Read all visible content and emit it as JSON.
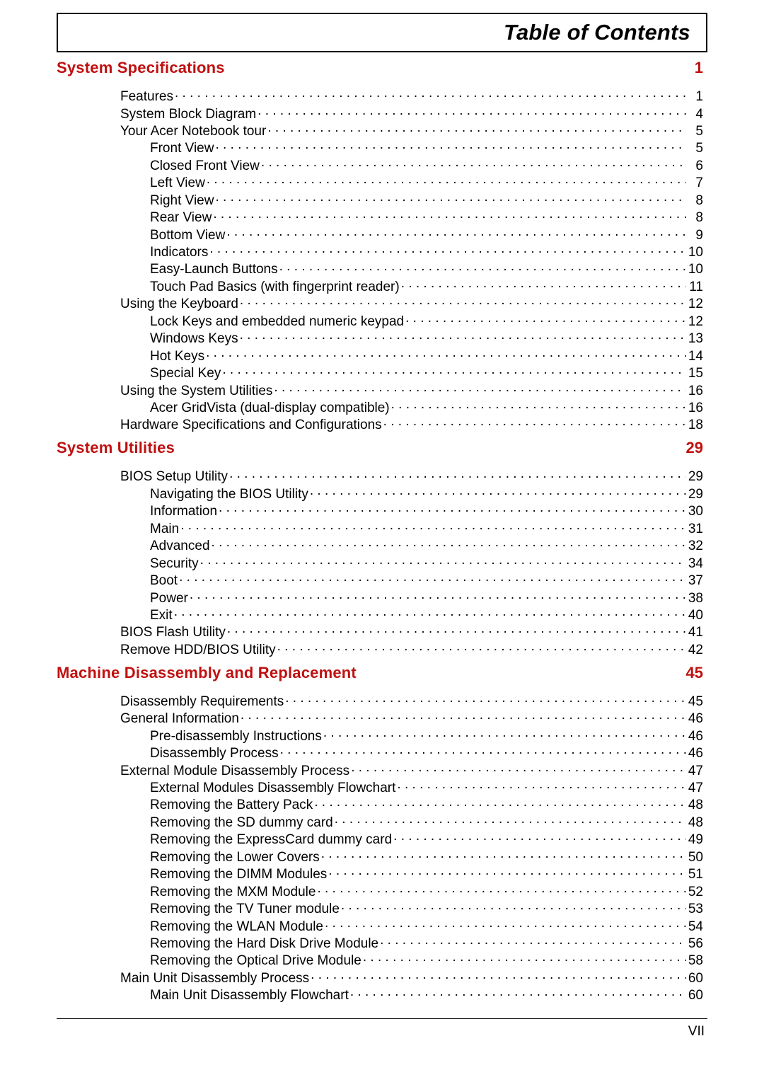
{
  "title": "Table of Contents",
  "footer_page": "VII",
  "colors": {
    "heading": "#c01010",
    "text": "#000000",
    "rule": "#000000",
    "background": "#ffffff"
  },
  "typography": {
    "body_fontsize_pt": 14,
    "heading_fontsize_pt": 17,
    "title_fontsize_pt": 24,
    "font_family": "Arial"
  },
  "sections": [
    {
      "title": "System Specifications",
      "page": "1",
      "entries": [
        {
          "level": 1,
          "label": "Features",
          "page": "1"
        },
        {
          "level": 1,
          "label": "System Block Diagram",
          "page": "4"
        },
        {
          "level": 1,
          "label": "Your Acer Notebook tour",
          "page": "5"
        },
        {
          "level": 2,
          "label": "Front View",
          "page": "5"
        },
        {
          "level": 2,
          "label": "Closed Front View",
          "page": "6"
        },
        {
          "level": 2,
          "label": "Left View",
          "page": "7"
        },
        {
          "level": 2,
          "label": "Right View",
          "page": "8"
        },
        {
          "level": 2,
          "label": "Rear View",
          "page": "8"
        },
        {
          "level": 2,
          "label": "Bottom View",
          "page": "9"
        },
        {
          "level": 2,
          "label": "Indicators",
          "page": "10"
        },
        {
          "level": 2,
          "label": "Easy-Launch Buttons",
          "page": "10"
        },
        {
          "level": 2,
          "label": "Touch Pad Basics (with fingerprint reader)",
          "page": "11"
        },
        {
          "level": 1,
          "label": "Using the Keyboard",
          "page": "12"
        },
        {
          "level": 2,
          "label": "Lock Keys and embedded numeric keypad",
          "page": "12"
        },
        {
          "level": 2,
          "label": "Windows Keys",
          "page": "13"
        },
        {
          "level": 2,
          "label": "Hot Keys",
          "page": "14"
        },
        {
          "level": 2,
          "label": "Special Key",
          "page": "15"
        },
        {
          "level": 1,
          "label": "Using the System Utilities",
          "page": "16"
        },
        {
          "level": 2,
          "label": "Acer GridVista (dual-display compatible)",
          "page": "16"
        },
        {
          "level": 1,
          "label": "Hardware Specifications and Configurations",
          "page": "18"
        }
      ]
    },
    {
      "title": "System Utilities",
      "page": "29",
      "entries": [
        {
          "level": 1,
          "label": "BIOS Setup Utility",
          "page": "29"
        },
        {
          "level": 2,
          "label": "Navigating the BIOS Utility",
          "page": "29"
        },
        {
          "level": 2,
          "label": "Information",
          "page": "30"
        },
        {
          "level": 2,
          "label": "Main",
          "page": "31"
        },
        {
          "level": 2,
          "label": "Advanced",
          "page": "32"
        },
        {
          "level": 2,
          "label": "Security",
          "page": "34"
        },
        {
          "level": 2,
          "label": "Boot",
          "page": "37"
        },
        {
          "level": 2,
          "label": "Power",
          "page": "38"
        },
        {
          "level": 2,
          "label": "Exit",
          "page": "40"
        },
        {
          "level": 1,
          "label": "BIOS Flash Utility",
          "page": "41"
        },
        {
          "level": 1,
          "label": "Remove HDD/BIOS Utility",
          "page": "42"
        }
      ]
    },
    {
      "title": "Machine Disassembly and Replacement",
      "page": "45",
      "entries": [
        {
          "level": 1,
          "label": "Disassembly Requirements",
          "page": "45"
        },
        {
          "level": 1,
          "label": "General Information",
          "page": "46"
        },
        {
          "level": 2,
          "label": "Pre-disassembly Instructions",
          "page": "46"
        },
        {
          "level": 2,
          "label": "Disassembly Process",
          "page": "46"
        },
        {
          "level": 1,
          "label": "External Module Disassembly Process",
          "page": "47"
        },
        {
          "level": 2,
          "label": "External Modules Disassembly Flowchart",
          "page": "47"
        },
        {
          "level": 2,
          "label": "Removing the Battery Pack",
          "page": "48"
        },
        {
          "level": 2,
          "label": "Removing the SD dummy card",
          "page": "48"
        },
        {
          "level": 2,
          "label": "Removing the ExpressCard dummy card",
          "page": "49"
        },
        {
          "level": 2,
          "label": "Removing the Lower Covers",
          "page": "50"
        },
        {
          "level": 2,
          "label": "Removing the DIMM Modules",
          "page": "51"
        },
        {
          "level": 2,
          "label": "Removing the MXM Module",
          "page": "52"
        },
        {
          "level": 2,
          "label": "Removing the TV Tuner module",
          "page": "53"
        },
        {
          "level": 2,
          "label": "Removing the WLAN Module",
          "page": "54"
        },
        {
          "level": 2,
          "label": "Removing the Hard Disk Drive Module",
          "page": "56"
        },
        {
          "level": 2,
          "label": "Removing the Optical Drive Module",
          "page": "58"
        },
        {
          "level": 1,
          "label": "Main Unit Disassembly Process",
          "page": "60"
        },
        {
          "level": 2,
          "label": "Main Unit Disassembly Flowchart",
          "page": "60"
        }
      ]
    }
  ]
}
